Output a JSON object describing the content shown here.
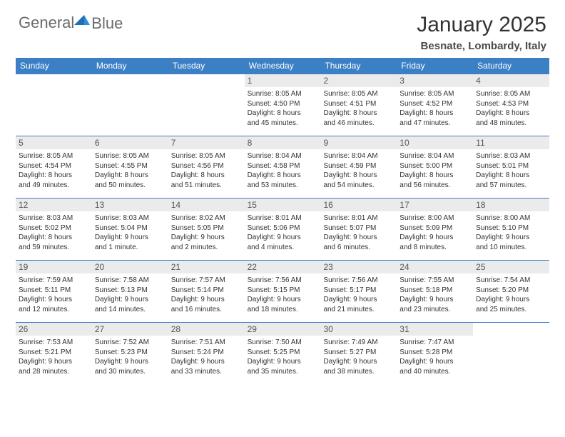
{
  "logo": {
    "general": "General",
    "blue": "Blue"
  },
  "title": "January 2025",
  "location": "Besnate, Lombardy, Italy",
  "header_bg": "#3b7fc4",
  "daynum_bg": "#ebebeb",
  "weekdays": [
    "Sunday",
    "Monday",
    "Tuesday",
    "Wednesday",
    "Thursday",
    "Friday",
    "Saturday"
  ],
  "weeks": [
    [
      null,
      null,
      null,
      {
        "num": "1",
        "sunrise": "Sunrise: 8:05 AM",
        "sunset": "Sunset: 4:50 PM",
        "d1": "Daylight: 8 hours",
        "d2": "and 45 minutes."
      },
      {
        "num": "2",
        "sunrise": "Sunrise: 8:05 AM",
        "sunset": "Sunset: 4:51 PM",
        "d1": "Daylight: 8 hours",
        "d2": "and 46 minutes."
      },
      {
        "num": "3",
        "sunrise": "Sunrise: 8:05 AM",
        "sunset": "Sunset: 4:52 PM",
        "d1": "Daylight: 8 hours",
        "d2": "and 47 minutes."
      },
      {
        "num": "4",
        "sunrise": "Sunrise: 8:05 AM",
        "sunset": "Sunset: 4:53 PM",
        "d1": "Daylight: 8 hours",
        "d2": "and 48 minutes."
      }
    ],
    [
      {
        "num": "5",
        "sunrise": "Sunrise: 8:05 AM",
        "sunset": "Sunset: 4:54 PM",
        "d1": "Daylight: 8 hours",
        "d2": "and 49 minutes."
      },
      {
        "num": "6",
        "sunrise": "Sunrise: 8:05 AM",
        "sunset": "Sunset: 4:55 PM",
        "d1": "Daylight: 8 hours",
        "d2": "and 50 minutes."
      },
      {
        "num": "7",
        "sunrise": "Sunrise: 8:05 AM",
        "sunset": "Sunset: 4:56 PM",
        "d1": "Daylight: 8 hours",
        "d2": "and 51 minutes."
      },
      {
        "num": "8",
        "sunrise": "Sunrise: 8:04 AM",
        "sunset": "Sunset: 4:58 PM",
        "d1": "Daylight: 8 hours",
        "d2": "and 53 minutes."
      },
      {
        "num": "9",
        "sunrise": "Sunrise: 8:04 AM",
        "sunset": "Sunset: 4:59 PM",
        "d1": "Daylight: 8 hours",
        "d2": "and 54 minutes."
      },
      {
        "num": "10",
        "sunrise": "Sunrise: 8:04 AM",
        "sunset": "Sunset: 5:00 PM",
        "d1": "Daylight: 8 hours",
        "d2": "and 56 minutes."
      },
      {
        "num": "11",
        "sunrise": "Sunrise: 8:03 AM",
        "sunset": "Sunset: 5:01 PM",
        "d1": "Daylight: 8 hours",
        "d2": "and 57 minutes."
      }
    ],
    [
      {
        "num": "12",
        "sunrise": "Sunrise: 8:03 AM",
        "sunset": "Sunset: 5:02 PM",
        "d1": "Daylight: 8 hours",
        "d2": "and 59 minutes."
      },
      {
        "num": "13",
        "sunrise": "Sunrise: 8:03 AM",
        "sunset": "Sunset: 5:04 PM",
        "d1": "Daylight: 9 hours",
        "d2": "and 1 minute."
      },
      {
        "num": "14",
        "sunrise": "Sunrise: 8:02 AM",
        "sunset": "Sunset: 5:05 PM",
        "d1": "Daylight: 9 hours",
        "d2": "and 2 minutes."
      },
      {
        "num": "15",
        "sunrise": "Sunrise: 8:01 AM",
        "sunset": "Sunset: 5:06 PM",
        "d1": "Daylight: 9 hours",
        "d2": "and 4 minutes."
      },
      {
        "num": "16",
        "sunrise": "Sunrise: 8:01 AM",
        "sunset": "Sunset: 5:07 PM",
        "d1": "Daylight: 9 hours",
        "d2": "and 6 minutes."
      },
      {
        "num": "17",
        "sunrise": "Sunrise: 8:00 AM",
        "sunset": "Sunset: 5:09 PM",
        "d1": "Daylight: 9 hours",
        "d2": "and 8 minutes."
      },
      {
        "num": "18",
        "sunrise": "Sunrise: 8:00 AM",
        "sunset": "Sunset: 5:10 PM",
        "d1": "Daylight: 9 hours",
        "d2": "and 10 minutes."
      }
    ],
    [
      {
        "num": "19",
        "sunrise": "Sunrise: 7:59 AM",
        "sunset": "Sunset: 5:11 PM",
        "d1": "Daylight: 9 hours",
        "d2": "and 12 minutes."
      },
      {
        "num": "20",
        "sunrise": "Sunrise: 7:58 AM",
        "sunset": "Sunset: 5:13 PM",
        "d1": "Daylight: 9 hours",
        "d2": "and 14 minutes."
      },
      {
        "num": "21",
        "sunrise": "Sunrise: 7:57 AM",
        "sunset": "Sunset: 5:14 PM",
        "d1": "Daylight: 9 hours",
        "d2": "and 16 minutes."
      },
      {
        "num": "22",
        "sunrise": "Sunrise: 7:56 AM",
        "sunset": "Sunset: 5:15 PM",
        "d1": "Daylight: 9 hours",
        "d2": "and 18 minutes."
      },
      {
        "num": "23",
        "sunrise": "Sunrise: 7:56 AM",
        "sunset": "Sunset: 5:17 PM",
        "d1": "Daylight: 9 hours",
        "d2": "and 21 minutes."
      },
      {
        "num": "24",
        "sunrise": "Sunrise: 7:55 AM",
        "sunset": "Sunset: 5:18 PM",
        "d1": "Daylight: 9 hours",
        "d2": "and 23 minutes."
      },
      {
        "num": "25",
        "sunrise": "Sunrise: 7:54 AM",
        "sunset": "Sunset: 5:20 PM",
        "d1": "Daylight: 9 hours",
        "d2": "and 25 minutes."
      }
    ],
    [
      {
        "num": "26",
        "sunrise": "Sunrise: 7:53 AM",
        "sunset": "Sunset: 5:21 PM",
        "d1": "Daylight: 9 hours",
        "d2": "and 28 minutes."
      },
      {
        "num": "27",
        "sunrise": "Sunrise: 7:52 AM",
        "sunset": "Sunset: 5:23 PM",
        "d1": "Daylight: 9 hours",
        "d2": "and 30 minutes."
      },
      {
        "num": "28",
        "sunrise": "Sunrise: 7:51 AM",
        "sunset": "Sunset: 5:24 PM",
        "d1": "Daylight: 9 hours",
        "d2": "and 33 minutes."
      },
      {
        "num": "29",
        "sunrise": "Sunrise: 7:50 AM",
        "sunset": "Sunset: 5:25 PM",
        "d1": "Daylight: 9 hours",
        "d2": "and 35 minutes."
      },
      {
        "num": "30",
        "sunrise": "Sunrise: 7:49 AM",
        "sunset": "Sunset: 5:27 PM",
        "d1": "Daylight: 9 hours",
        "d2": "and 38 minutes."
      },
      {
        "num": "31",
        "sunrise": "Sunrise: 7:47 AM",
        "sunset": "Sunset: 5:28 PM",
        "d1": "Daylight: 9 hours",
        "d2": "and 40 minutes."
      },
      null
    ]
  ]
}
